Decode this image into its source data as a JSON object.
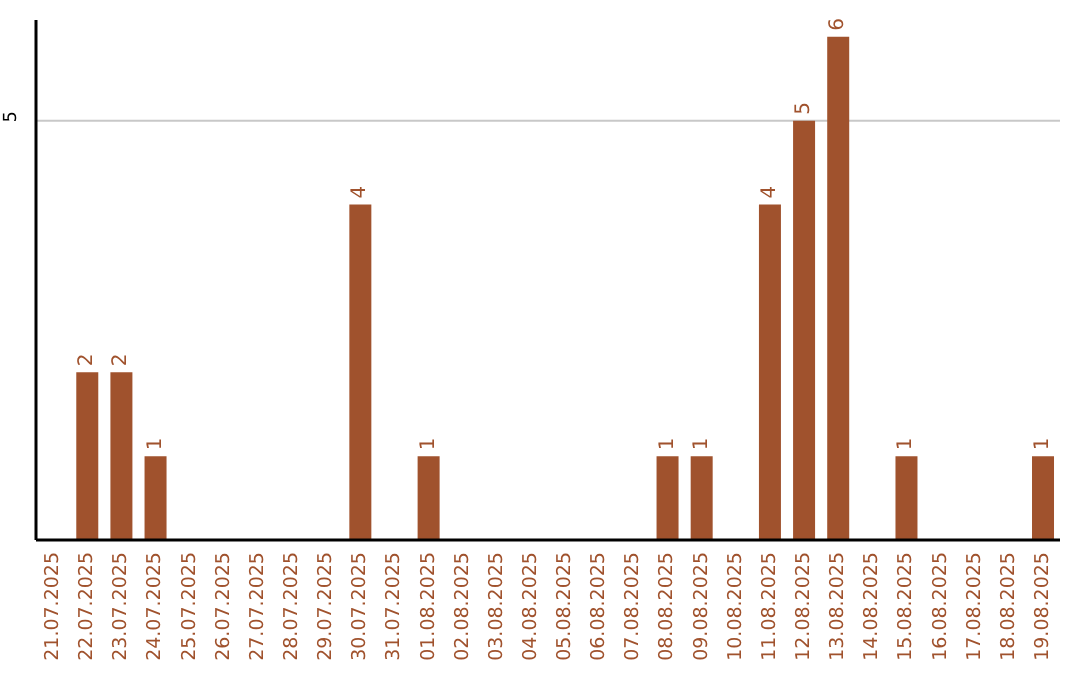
{
  "chart_data": {
    "type": "bar",
    "categories": [
      "21.07.2025",
      "22.07.2025",
      "23.07.2025",
      "24.07.2025",
      "25.07.2025",
      "26.07.2025",
      "27.07.2025",
      "28.07.2025",
      "29.07.2025",
      "30.07.2025",
      "31.07.2025",
      "01.08.2025",
      "02.08.2025",
      "03.08.2025",
      "04.08.2025",
      "05.08.2025",
      "06.08.2025",
      "07.08.2025",
      "08.08.2025",
      "09.08.2025",
      "10.08.2025",
      "11.08.2025",
      "12.08.2025",
      "13.08.2025",
      "14.08.2025",
      "15.08.2025",
      "16.08.2025",
      "17.08.2025",
      "18.08.2025",
      "19.08.2025"
    ],
    "values": [
      0,
      2,
      2,
      1,
      0,
      0,
      0,
      0,
      0,
      4,
      0,
      1,
      0,
      0,
      0,
      0,
      0,
      0,
      1,
      1,
      0,
      4,
      5,
      6,
      0,
      1,
      0,
      0,
      0,
      1
    ],
    "value_labels": [
      null,
      "2",
      "2",
      "1",
      null,
      null,
      null,
      null,
      null,
      "4",
      null,
      "1",
      null,
      null,
      null,
      null,
      null,
      null,
      "1",
      "1",
      null,
      "4",
      "5",
      "6",
      null,
      "1",
      null,
      null,
      null,
      "1"
    ],
    "color": "#a0522d",
    "ylim": [
      0,
      6.2
    ],
    "yticks": [
      5
    ],
    "grid": "y"
  }
}
